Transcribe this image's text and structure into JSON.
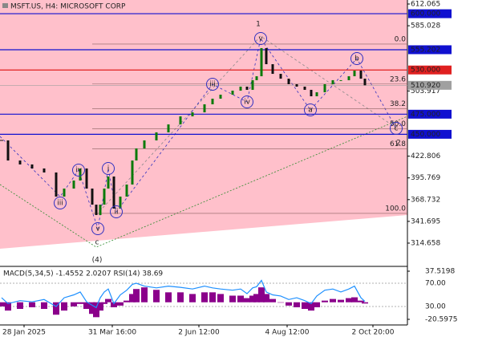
{
  "chart_data": [
    {
      "type": "candlestick",
      "title": "MSFT.US, H4:  MICROSOFT CORP",
      "x": [
        2,
        10,
        25,
        40,
        55,
        70,
        80,
        92,
        100,
        108,
        115,
        120,
        125,
        130,
        135,
        142,
        150,
        158,
        165,
        170,
        180,
        195,
        210,
        225,
        240,
        255,
        265,
        275,
        290,
        300,
        308,
        315,
        320,
        326,
        332,
        340,
        350,
        360,
        370,
        380,
        388,
        395,
        405,
        415,
        425,
        435,
        442,
        450,
        455
      ],
      "values": [
        442.4,
        417.4,
        412.5,
        407.5,
        402.5,
        372.5,
        382.5,
        392.5,
        407.5,
        382.5,
        362.5,
        349.6,
        362.5,
        382.5,
        397.5,
        357.6,
        372.5,
        387.5,
        417.4,
        432.4,
        442.4,
        452.4,
        462.3,
        472.3,
        477.3,
        487.3,
        494.3,
        499.3,
        504.3,
        509.3,
        505.3,
        517.3,
        522.2,
        557.2,
        537.2,
        525.2,
        519.2,
        512.3,
        509.3,
        505.3,
        497.3,
        502.3,
        512.3,
        517.3,
        517.3,
        522.2,
        529.2,
        519.2,
        510.92
      ],
      "up_color": "#0a7a0a",
      "down_color": "#111111",
      "xlim": [
        0,
        508
      ],
      "xticks": [
        {
          "value": 30,
          "label": "28 Jan 2025"
        },
        {
          "value": 140,
          "label": "31 Mar 16:00"
        },
        {
          "value": 248,
          "label": "2 Jun 12:00"
        },
        {
          "value": 358,
          "label": "4 Aug 12:00"
        },
        {
          "value": 465,
          "label": "2 Oct 20:00"
        }
      ],
      "ylim": [
        285.7,
        617.05
      ],
      "yticks": [
        612.065,
        585.028,
        503.917,
        422.806,
        395.769,
        368.732,
        341.695,
        314.658
      ],
      "levels": [
        {
          "value": 600,
          "label": "600.000",
          "color": "#1010d0"
        },
        {
          "value": 555.202,
          "label": "555.202",
          "color": "#1010d0"
        },
        {
          "value": 530,
          "label": "530.000",
          "color": "#e02020"
        },
        {
          "value": 510.92,
          "label": "510.920",
          "color": "#a0a0a0"
        },
        {
          "value": 475,
          "label": "475.000",
          "color": "#1010d0"
        },
        {
          "value": 450,
          "label": "450.000",
          "color": "#1010d0"
        }
      ],
      "fib": [
        {
          "value": 562.2,
          "label": "0.0"
        },
        {
          "value": 512.5,
          "label": "23.6"
        },
        {
          "value": 481.8,
          "label": "38.2"
        },
        {
          "value": 456.9,
          "label": "50.0"
        },
        {
          "value": 432.0,
          "label": "61.8"
        },
        {
          "value": 351.6,
          "label": "100.0"
        }
      ],
      "annotations": [
        {
          "text": "1",
          "color": "#b05030",
          "circled": false
        },
        {
          "text": "v",
          "color": "#3030c0",
          "circled": true
        },
        {
          "text": "iii",
          "color": "#3030c0",
          "circled": true
        },
        {
          "text": "iv",
          "color": "#3030c0",
          "circled": true
        },
        {
          "text": "a",
          "color": "#3030c0",
          "circled": true
        },
        {
          "text": "b",
          "color": "#3030c0",
          "circled": true
        },
        {
          "text": "c",
          "color": "#3030c0",
          "circled": true
        },
        {
          "text": "2",
          "color": "#b05030",
          "circled": false
        },
        {
          "text": "i",
          "color": "#3030c0",
          "circled": true
        },
        {
          "text": "ii",
          "color": "#3030c0",
          "circled": true
        },
        {
          "text": "iii",
          "color": "#3030c0",
          "circled": true
        },
        {
          "text": "iv",
          "color": "#3030c0",
          "circled": true
        },
        {
          "text": "v",
          "color": "#3030c0",
          "circled": true
        },
        {
          "text": "c",
          "color": "#b05030",
          "circled": false
        },
        {
          "text": "(4)",
          "color": "#2e8b2e",
          "circled": false
        }
      ]
    },
    {
      "type": "macd_rsi",
      "title": "MACD(5,34,5) -1.4552 2.0207 RSI(14) 38.69",
      "ylim": [
        -20.5975,
        37.5198
      ],
      "yticks": [
        37.5198,
        -20.5975
      ],
      "y2lim": [
        7.93,
        90.69
      ],
      "y2ticks": [
        {
          "value": 70,
          "label": "70.00"
        },
        {
          "value": 30,
          "label": "30.00"
        }
      ],
      "series": [
        {
          "color": "#8b008b",
          "values": [
            -5,
            -10,
            -8,
            -6,
            -8,
            -15,
            -10,
            -5,
            -2,
            -8,
            -14,
            -18,
            -10,
            -2,
            4,
            -6,
            -4,
            2,
            10,
            16,
            18,
            15,
            12,
            12,
            10,
            12,
            12,
            10,
            8,
            8,
            5,
            8,
            10,
            18,
            10,
            4,
            0,
            -4,
            -6,
            -8,
            -10,
            -6,
            2,
            4,
            3,
            5,
            6,
            2,
            -1.5
          ]
        },
        {
          "color": "#1e90ff",
          "axis": "y2",
          "values": [
            45,
            35,
            40,
            38,
            42,
            30,
            45,
            50,
            55,
            38,
            32,
            28,
            45,
            55,
            60,
            35,
            50,
            58,
            68,
            70,
            65,
            62,
            65,
            63,
            60,
            65,
            62,
            60,
            58,
            60,
            52,
            62,
            64,
            75,
            55,
            50,
            48,
            42,
            45,
            40,
            35,
            48,
            58,
            60,
            55,
            60,
            65,
            45,
            38.69
          ]
        }
      ]
    }
  ]
}
